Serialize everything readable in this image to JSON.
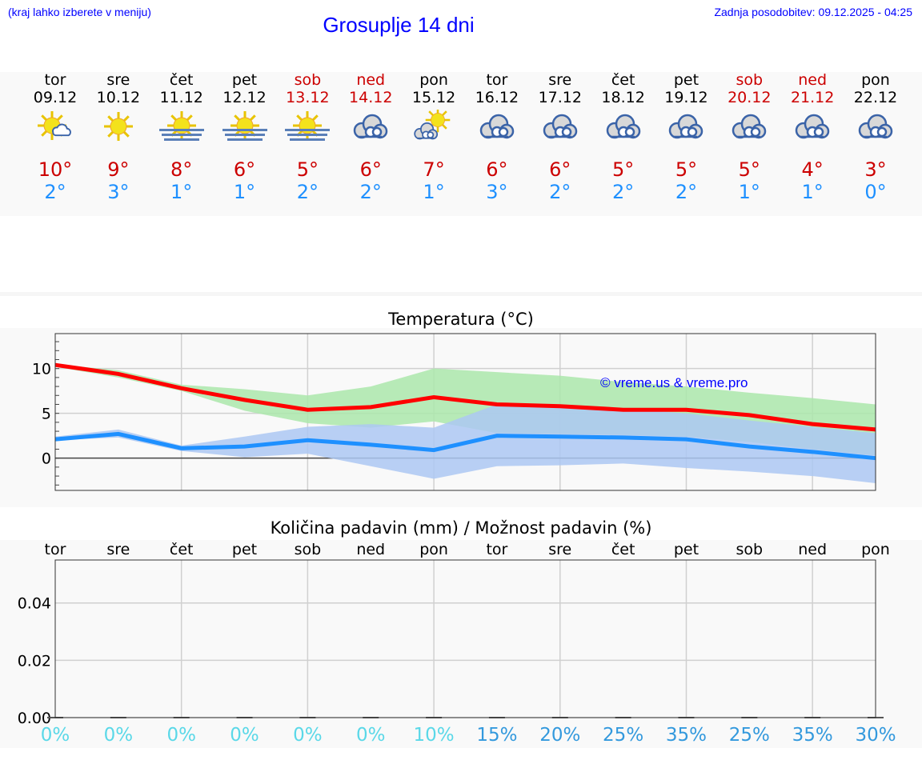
{
  "header": {
    "hint": "(kraj lahko izberete v meniju)",
    "title": "Grosuplje 14 dni",
    "updated": "Zadnja posodobitev: 09.12.2025 - 04:25"
  },
  "days": [
    {
      "name": "tor",
      "date": "09.12",
      "weekend": false,
      "icon": "sun-cloud-icon",
      "max": "10°",
      "min": "2°"
    },
    {
      "name": "sre",
      "date": "10.12",
      "weekend": false,
      "icon": "sun-icon",
      "max": "9°",
      "min": "3°"
    },
    {
      "name": "čet",
      "date": "11.12",
      "weekend": false,
      "icon": "sun-fog-icon",
      "max": "8°",
      "min": "1°"
    },
    {
      "name": "pet",
      "date": "12.12",
      "weekend": false,
      "icon": "sun-fog-icon",
      "max": "6°",
      "min": "1°"
    },
    {
      "name": "sob",
      "date": "13.12",
      "weekend": true,
      "icon": "sun-fog-icon",
      "max": "5°",
      "min": "2°"
    },
    {
      "name": "ned",
      "date": "14.12",
      "weekend": true,
      "icon": "cloud-icon",
      "max": "6°",
      "min": "2°"
    },
    {
      "name": "pon",
      "date": "15.12",
      "weekend": false,
      "icon": "cloud-sun-icon",
      "max": "7°",
      "min": "1°"
    },
    {
      "name": "tor",
      "date": "16.12",
      "weekend": false,
      "icon": "cloud-icon",
      "max": "6°",
      "min": "3°"
    },
    {
      "name": "sre",
      "date": "17.12",
      "weekend": false,
      "icon": "cloud-icon",
      "max": "6°",
      "min": "2°"
    },
    {
      "name": "čet",
      "date": "18.12",
      "weekend": false,
      "icon": "cloud-icon",
      "max": "5°",
      "min": "2°"
    },
    {
      "name": "pet",
      "date": "19.12",
      "weekend": false,
      "icon": "cloud-icon",
      "max": "5°",
      "min": "2°"
    },
    {
      "name": "sob",
      "date": "20.12",
      "weekend": true,
      "icon": "cloud-icon",
      "max": "5°",
      "min": "1°"
    },
    {
      "name": "ned",
      "date": "21.12",
      "weekend": true,
      "icon": "cloud-icon",
      "max": "4°",
      "min": "1°"
    },
    {
      "name": "pon",
      "date": "22.12",
      "weekend": false,
      "icon": "cloud-icon",
      "max": "3°",
      "min": "0°"
    }
  ],
  "colors": {
    "max_line": "#ff0000",
    "min_line": "#1e90ff",
    "max_band": "#abe8ab",
    "min_band": "#adc8f3",
    "overlap": "#7fc7a8",
    "pct_low": "#5ad8e8",
    "pct_high": "#3399dd"
  },
  "chart_data": [
    {
      "type": "line",
      "title": "Temperatura (°C)",
      "watermark": "© vreme.us & vreme.pro",
      "ylim": [
        -3.6,
        13.9
      ],
      "yticks": [
        "10",
        "5",
        "0"
      ],
      "ytick_values": [
        10,
        5,
        0
      ],
      "x": [
        0,
        1,
        2,
        3,
        4,
        5,
        6,
        7,
        8,
        9,
        10,
        11,
        12,
        13
      ],
      "series": [
        {
          "name": "max",
          "values": [
            10.4,
            9.4,
            7.8,
            6.5,
            5.4,
            5.7,
            6.8,
            6.0,
            5.8,
            5.4,
            5.4,
            4.8,
            3.8,
            3.2
          ],
          "band_high": [
            10.5,
            9.8,
            8.2,
            7.7,
            7.0,
            8.0,
            10.0,
            9.6,
            9.2,
            8.5,
            8.0,
            7.3,
            6.7,
            6.0
          ],
          "band_low": [
            10.2,
            9.0,
            7.5,
            5.3,
            3.9,
            3.4,
            4.1,
            2.8,
            2.7,
            2.6,
            2.4,
            1.8,
            1.0,
            0.3
          ]
        },
        {
          "name": "min",
          "values": [
            2.1,
            2.7,
            1.1,
            1.3,
            2.0,
            1.5,
            0.9,
            2.5,
            2.4,
            2.3,
            2.1,
            1.3,
            0.7,
            0.0
          ],
          "band_high": [
            2.4,
            3.2,
            1.4,
            2.4,
            3.5,
            3.8,
            3.4,
            6.0,
            6.0,
            5.5,
            5.0,
            4.2,
            3.5,
            2.8
          ],
          "band_low": [
            2.0,
            2.3,
            0.8,
            0.1,
            0.5,
            -0.9,
            -2.3,
            -0.9,
            -0.8,
            -0.6,
            -1.1,
            -1.5,
            -2.0,
            -2.8
          ]
        }
      ]
    },
    {
      "type": "bar",
      "title": "Količina padavin (mm) / Možnost padavin (%)",
      "ylim": [
        0,
        0.055
      ],
      "yticks": [
        "0.04",
        "0.02",
        "0.00"
      ],
      "ytick_values": [
        0.04,
        0.02,
        0
      ],
      "categories": [
        "tor",
        "sre",
        "čet",
        "pet",
        "sob",
        "ned",
        "pon",
        "tor",
        "sre",
        "čet",
        "pet",
        "sob",
        "ned",
        "pon"
      ],
      "values": [
        0,
        0,
        0,
        0,
        0,
        0,
        0,
        0,
        0,
        0,
        0,
        0,
        0,
        0
      ],
      "probability": [
        "0%",
        "0%",
        "0%",
        "0%",
        "0%",
        "0%",
        "10%",
        "15%",
        "20%",
        "25%",
        "35%",
        "25%",
        "35%",
        "30%"
      ],
      "probability_values": [
        0,
        0,
        0,
        0,
        0,
        0,
        10,
        15,
        20,
        25,
        35,
        25,
        35,
        30
      ]
    }
  ]
}
